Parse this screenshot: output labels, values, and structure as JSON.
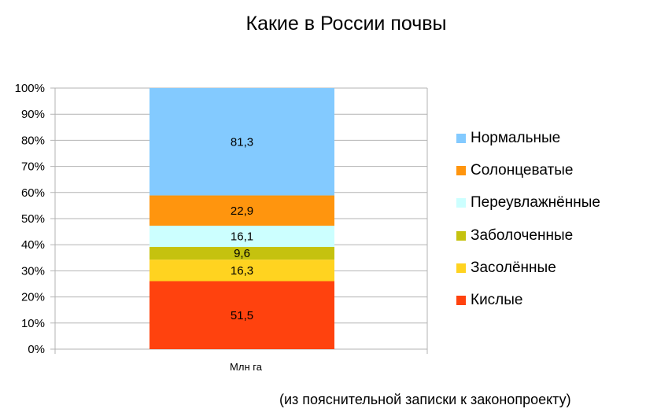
{
  "chart_data": {
    "type": "bar",
    "stacked": true,
    "normalized": true,
    "title": "Какие в России почвы",
    "categories": [
      "Млн га"
    ],
    "series": [
      {
        "name": "Кислые",
        "values": [
          51.5
        ],
        "label": "51,5",
        "color": "#ff420e"
      },
      {
        "name": "Засолённые",
        "values": [
          16.3
        ],
        "label": "16,3",
        "color": "#ffd320"
      },
      {
        "name": "Заболоченные",
        "values": [
          9.6
        ],
        "label": "9,6",
        "color": "#c5c20f"
      },
      {
        "name": "Переувлажнённые",
        "values": [
          16.1
        ],
        "label": "16,1",
        "color": "#ccffff"
      },
      {
        "name": "Солонцеватые",
        "values": [
          22.9
        ],
        "label": "22,9",
        "color": "#ff950e"
      },
      {
        "name": "Нормальные",
        "values": [
          81.3
        ],
        "label": "81,3",
        "color": "#83caff"
      }
    ],
    "y_ticks": [
      "0%",
      "10%",
      "20%",
      "30%",
      "40%",
      "50%",
      "60%",
      "70%",
      "80%",
      "90%",
      "100%"
    ],
    "ylim": [
      0,
      100
    ],
    "grid": true,
    "legend_position": "right"
  },
  "legend": [
    {
      "label": "Нормальные",
      "color": "#83caff"
    },
    {
      "label": "Солонцеватые",
      "color": "#ff950e"
    },
    {
      "label": "Переувлажнённые",
      "color": "#ccffff"
    },
    {
      "label": "Заболоченные",
      "color": "#c5c20f"
    },
    {
      "label": "Засолённые",
      "color": "#ffd320"
    },
    {
      "label": "Кислые",
      "color": "#ff420e"
    }
  ],
  "note": "(из пояснительной записки к законопроекту)"
}
